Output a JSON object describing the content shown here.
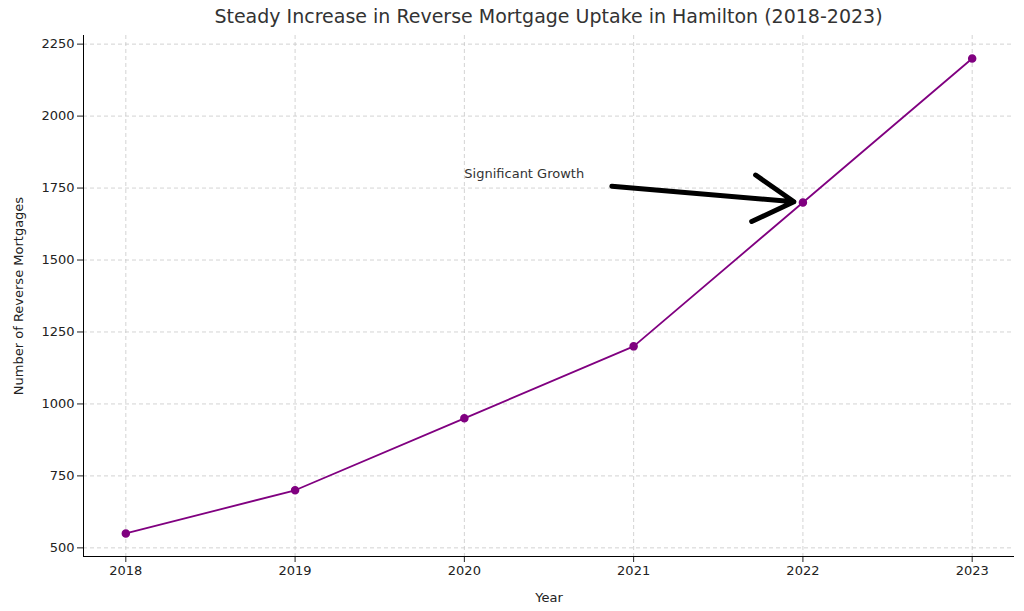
{
  "chart_data": {
    "type": "line",
    "title": "Steady Increase in Reverse Mortgage Uptake in Hamilton (2018-2023)",
    "x_label": "Year",
    "y_label": "Number of Reverse Mortgages",
    "x": [
      2018,
      2019,
      2020,
      2021,
      2022,
      2023
    ],
    "values": [
      550,
      700,
      950,
      1200,
      1700,
      2200
    ],
    "color": "#800080",
    "marker": "circle",
    "line_style": "solid",
    "xlim": [
      2017.75,
      2023.25
    ],
    "xticks": [
      2018,
      2019,
      2020,
      2021,
      2022,
      2023
    ],
    "ylim": [
      470,
      2280
    ],
    "yticks": [
      500,
      750,
      1000,
      1250,
      1500,
      1750,
      2000,
      2250
    ],
    "grid": true,
    "annotations": [
      {
        "text": "Significant Growth",
        "x": 2020,
        "y": 1800,
        "arrow_to": [
          2022,
          1700
        ]
      }
    ]
  }
}
